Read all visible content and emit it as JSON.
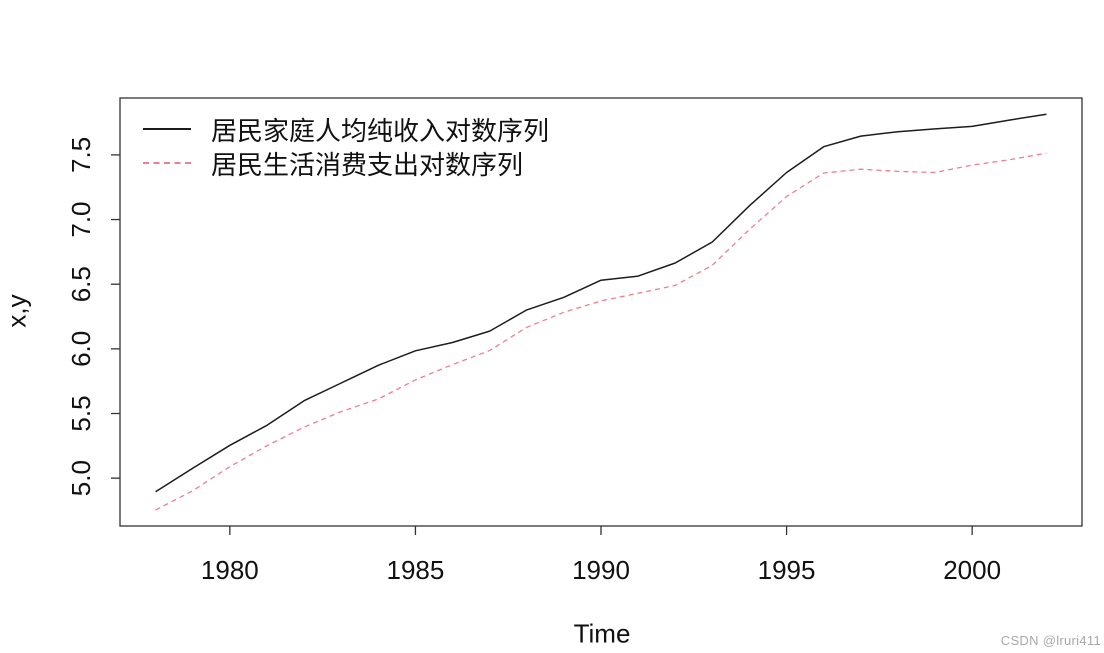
{
  "figure": {
    "background": "#ffffff",
    "watermark": "CSDN @lruri411",
    "watermark_color": "#a8a8a8"
  },
  "chart_data": {
    "type": "line",
    "title": "",
    "xlabel": "Time",
    "ylabel": "x,y",
    "grid": false,
    "legend_position": "top-left-inside",
    "axis_color": "#333333",
    "x_ticks": [
      "1980",
      "1985",
      "1990",
      "1995",
      "2000"
    ],
    "y_ticks": [
      "5.0",
      "5.5",
      "6.0",
      "6.5",
      "7.0",
      "7.5"
    ],
    "xlim": [
      1977.04,
      2002.96
    ],
    "ylim": [
      4.63,
      7.94
    ],
    "x": [
      1978,
      1979,
      1980,
      1981,
      1982,
      1983,
      1984,
      1985,
      1986,
      1987,
      1988,
      1989,
      1990,
      1991,
      1992,
      1993,
      1994,
      1995,
      1996,
      1997,
      1998,
      1999,
      2000,
      2001,
      2002
    ],
    "series": [
      {
        "name": "居民家庭人均纯收入对数序列",
        "color": "#1c1c1c",
        "style": "solid",
        "values": [
          4.895,
          5.076,
          5.254,
          5.409,
          5.599,
          5.736,
          5.873,
          5.985,
          6.049,
          6.137,
          6.301,
          6.399,
          6.531,
          6.563,
          6.664,
          6.826,
          7.107,
          7.364,
          7.563,
          7.645,
          7.679,
          7.701,
          7.72,
          7.769,
          7.814
        ]
      },
      {
        "name": "居民生活消费支出对数序列",
        "color": "#ee7d8f",
        "style": "dashed",
        "values": [
          4.754,
          4.902,
          5.089,
          5.251,
          5.395,
          5.515,
          5.612,
          5.76,
          5.878,
          5.987,
          6.167,
          6.283,
          6.371,
          6.43,
          6.491,
          6.646,
          6.924,
          7.178,
          7.36,
          7.389,
          7.372,
          7.364,
          7.421,
          7.462,
          7.514
        ]
      }
    ]
  }
}
